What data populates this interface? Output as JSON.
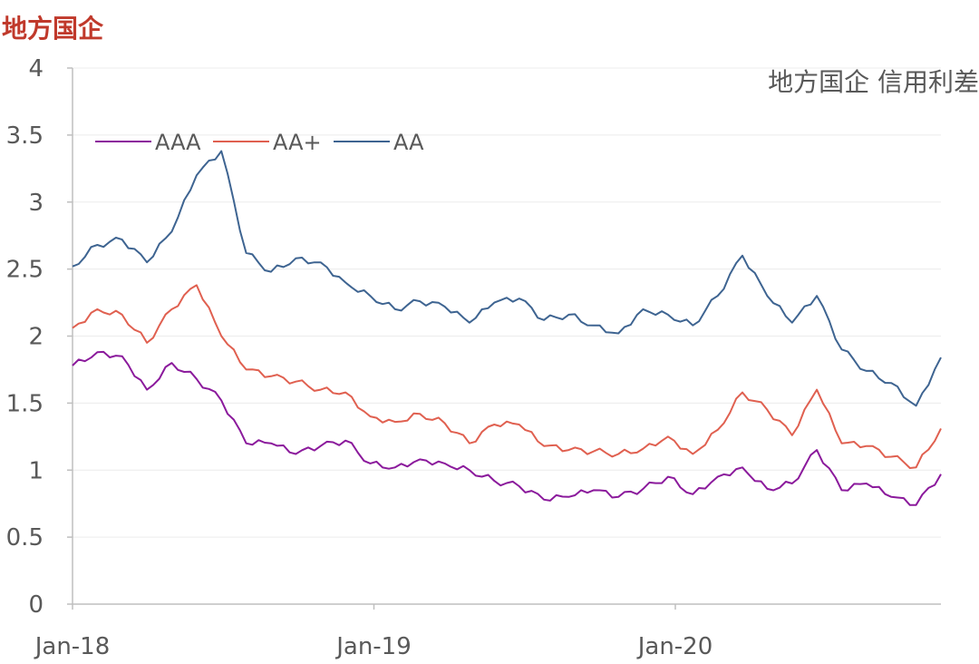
{
  "page_title": "地方国企",
  "chart_data": {
    "type": "line",
    "title": "地方国企 信用利差",
    "xlabel": "",
    "ylabel": "",
    "ylim": [
      0,
      4
    ],
    "yticks": [
      "0",
      "0.5",
      "1",
      "1.5",
      "2",
      "2.5",
      "3",
      "3.5",
      "4"
    ],
    "xticks": [
      "Jan-18",
      "Jan-19",
      "Jan-20"
    ],
    "legend_position": "top-left",
    "grid": true,
    "x": [
      "2018-01",
      "2018-02",
      "2018-03",
      "2018-04",
      "2018-05",
      "2018-06",
      "2018-07",
      "2018-08",
      "2018-09",
      "2018-10",
      "2018-11",
      "2018-12",
      "2019-01",
      "2019-02",
      "2019-03",
      "2019-04",
      "2019-05",
      "2019-06",
      "2019-07",
      "2019-08",
      "2019-09",
      "2019-10",
      "2019-11",
      "2019-12",
      "2020-01",
      "2020-02",
      "2020-03",
      "2020-04",
      "2020-05",
      "2020-06",
      "2020-07",
      "2020-08",
      "2020-09",
      "2020-10",
      "2020-11",
      "2020-12"
    ],
    "series": [
      {
        "name": "AAA",
        "color": "#8B1A9C",
        "values": [
          1.78,
          1.88,
          1.85,
          1.6,
          1.8,
          1.68,
          1.52,
          1.2,
          1.2,
          1.12,
          1.18,
          1.22,
          1.05,
          1.02,
          1.08,
          1.05,
          1.0,
          0.92,
          0.88,
          0.78,
          0.8,
          0.85,
          0.8,
          0.86,
          0.95,
          0.82,
          0.95,
          1.02,
          0.86,
          0.9,
          1.15,
          0.85,
          0.9,
          0.8,
          0.74,
          0.97
        ]
      },
      {
        "name": "AA+",
        "color": "#E06050",
        "values": [
          2.06,
          2.2,
          2.16,
          1.95,
          2.2,
          2.38,
          2.0,
          1.75,
          1.7,
          1.66,
          1.6,
          1.58,
          1.4,
          1.36,
          1.42,
          1.35,
          1.2,
          1.34,
          1.34,
          1.18,
          1.15,
          1.14,
          1.12,
          1.16,
          1.25,
          1.12,
          1.3,
          1.58,
          1.45,
          1.26,
          1.6,
          1.2,
          1.18,
          1.1,
          1.02,
          1.31
        ]
      },
      {
        "name": "AA",
        "color": "#3E6491",
        "values": [
          2.52,
          2.68,
          2.72,
          2.55,
          2.78,
          3.2,
          3.38,
          2.62,
          2.48,
          2.58,
          2.55,
          2.4,
          2.3,
          2.2,
          2.26,
          2.22,
          2.1,
          2.25,
          2.28,
          2.12,
          2.16,
          2.08,
          2.02,
          2.2,
          2.16,
          2.08,
          2.3,
          2.6,
          2.3,
          2.1,
          2.3,
          1.9,
          1.74,
          1.65,
          1.48,
          1.84
        ]
      }
    ]
  }
}
